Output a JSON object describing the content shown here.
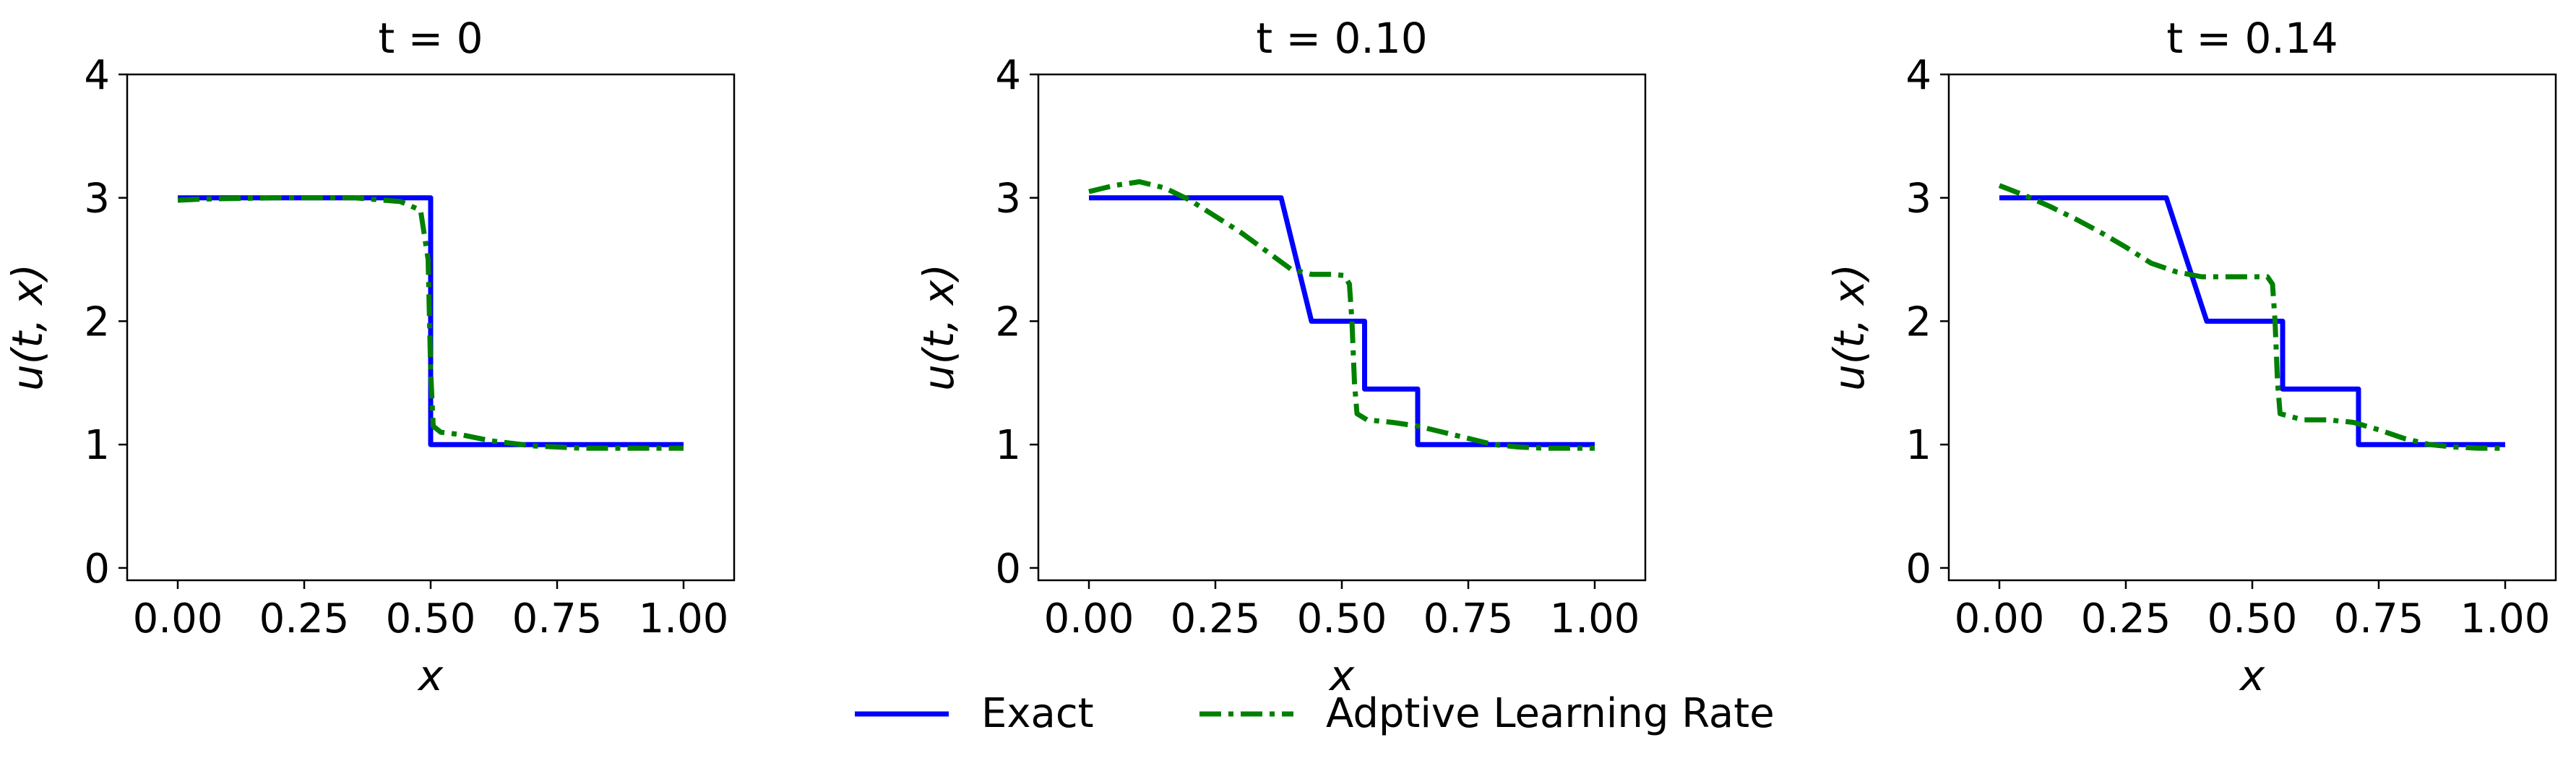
{
  "chart_data": [
    {
      "type": "line",
      "title": "t = 0",
      "xlabel": "x",
      "ylabel": "u(t, x)",
      "xlim": [
        -0.1,
        1.1
      ],
      "ylim": [
        -0.1,
        4
      ],
      "xticks": [
        "0.00",
        "0.25",
        "0.50",
        "0.75",
        "1.00"
      ],
      "yticks": [
        "0",
        "1",
        "2",
        "3",
        "4"
      ],
      "series": [
        {
          "name": "Exact",
          "color": "#0000ff",
          "style": "solid",
          "x": [
            0,
            0.5,
            0.5,
            1.0
          ],
          "y": [
            3,
            3,
            1,
            1
          ]
        },
        {
          "name": "Adptive Learning Rate",
          "color": "#008000",
          "style": "dashdot",
          "x": [
            0,
            0.05,
            0.2,
            0.35,
            0.44,
            0.48,
            0.495,
            0.5,
            0.505,
            0.52,
            0.56,
            0.62,
            0.7,
            0.8,
            0.9,
            1.0
          ],
          "y": [
            2.98,
            2.99,
            3.0,
            3.0,
            2.97,
            2.9,
            2.5,
            1.6,
            1.15,
            1.1,
            1.08,
            1.03,
            0.99,
            0.97,
            0.97,
            0.97
          ]
        }
      ]
    },
    {
      "type": "line",
      "title": "t = 0.10",
      "xlabel": "x",
      "ylabel": "u(t, x)",
      "xlim": [
        -0.1,
        1.1
      ],
      "ylim": [
        -0.1,
        4
      ],
      "xticks": [
        "0.00",
        "0.25",
        "0.50",
        "0.75",
        "1.00"
      ],
      "yticks": [
        "0",
        "1",
        "2",
        "3",
        "4"
      ],
      "series": [
        {
          "name": "Exact",
          "color": "#0000ff",
          "style": "solid",
          "x": [
            0,
            0.38,
            0.44,
            0.545,
            0.545,
            0.65,
            0.65,
            1.0
          ],
          "y": [
            3,
            3,
            2,
            2,
            1.45,
            1.45,
            1,
            1
          ]
        },
        {
          "name": "Adptive Learning Rate",
          "color": "#008000",
          "style": "dashdot",
          "x": [
            0,
            0.05,
            0.1,
            0.15,
            0.2,
            0.25,
            0.3,
            0.35,
            0.4,
            0.44,
            0.48,
            0.505,
            0.515,
            0.52,
            0.525,
            0.53,
            0.55,
            0.6,
            0.65,
            0.7,
            0.75,
            0.8,
            0.85,
            0.9,
            0.95,
            1.0
          ],
          "y": [
            3.05,
            3.1,
            3.13,
            3.08,
            2.98,
            2.85,
            2.72,
            2.57,
            2.42,
            2.38,
            2.38,
            2.37,
            2.3,
            2.0,
            1.5,
            1.25,
            1.2,
            1.18,
            1.15,
            1.1,
            1.05,
            1.0,
            0.98,
            0.97,
            0.97,
            0.97
          ]
        }
      ]
    },
    {
      "type": "line",
      "title": "t = 0.14",
      "xlabel": "x",
      "ylabel": "u(t, x)",
      "xlim": [
        -0.1,
        1.1
      ],
      "ylim": [
        -0.1,
        4
      ],
      "xticks": [
        "0.00",
        "0.25",
        "0.50",
        "0.75",
        "1.00"
      ],
      "yticks": [
        "0",
        "1",
        "2",
        "3",
        "4"
      ],
      "series": [
        {
          "name": "Exact",
          "color": "#0000ff",
          "style": "solid",
          "x": [
            0,
            0.33,
            0.41,
            0.56,
            0.56,
            0.71,
            0.71,
            1.0
          ],
          "y": [
            3,
            3,
            2,
            2,
            1.45,
            1.45,
            1,
            1
          ]
        },
        {
          "name": "Adptive Learning Rate",
          "color": "#008000",
          "style": "dashdot",
          "x": [
            0,
            0.05,
            0.1,
            0.15,
            0.2,
            0.25,
            0.3,
            0.35,
            0.4,
            0.45,
            0.5,
            0.53,
            0.54,
            0.545,
            0.55,
            0.555,
            0.6,
            0.65,
            0.7,
            0.75,
            0.8,
            0.85,
            0.9,
            0.95,
            1.0
          ],
          "y": [
            3.1,
            3.02,
            2.93,
            2.83,
            2.72,
            2.6,
            2.47,
            2.4,
            2.36,
            2.36,
            2.36,
            2.36,
            2.3,
            2.0,
            1.5,
            1.25,
            1.2,
            1.2,
            1.18,
            1.12,
            1.05,
            1.0,
            0.98,
            0.97,
            0.97
          ]
        }
      ]
    }
  ],
  "legend": {
    "placement": "bottom-center",
    "entries": [
      {
        "label": "Exact",
        "color": "#0000ff",
        "style": "solid"
      },
      {
        "label": "Adptive Learning Rate",
        "color": "#008000",
        "style": "dashdot"
      }
    ]
  }
}
